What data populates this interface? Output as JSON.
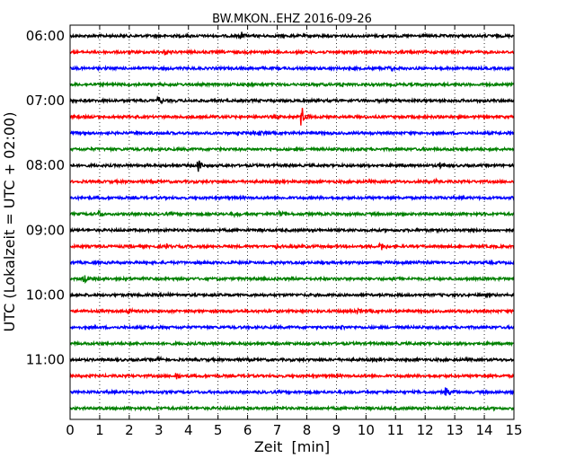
{
  "chart_data": {
    "type": "line",
    "title": "BW.MKON..EHZ 2016-09-26",
    "xlabel": "Zeit  [min]",
    "ylabel": "UTC (Lokalzeit = UTC + 02:00)",
    "xlim": [
      0,
      15
    ],
    "x_ticks": [
      "0",
      "1",
      "2",
      "3",
      "4",
      "5",
      "6",
      "7",
      "8",
      "9",
      "10",
      "11",
      "12",
      "13",
      "14",
      "15"
    ],
    "y_ticks": [
      "06:00",
      "07:00",
      "08:00",
      "09:00",
      "10:00",
      "11:00"
    ],
    "grid": "vertical dotted at each minute",
    "series_colors": [
      "#000000",
      "#ff0000",
      "#0000ff",
      "#008000"
    ],
    "traces": [
      {
        "start": "06:00",
        "color": "#000000",
        "events": [
          {
            "t": 5.8,
            "amp": 0.5
          }
        ]
      },
      {
        "start": "06:15",
        "color": "#ff0000",
        "events": [
          {
            "t": 3.2,
            "amp": 0.4
          }
        ]
      },
      {
        "start": "06:30",
        "color": "#0000ff",
        "events": [
          {
            "t": 10.8,
            "amp": 0.4
          }
        ]
      },
      {
        "start": "06:45",
        "color": "#008000",
        "events": [
          {
            "t": 9.2,
            "amp": 0.4
          }
        ]
      },
      {
        "start": "07:00",
        "color": "#000000",
        "events": [
          {
            "t": 3.0,
            "amp": 0.6
          }
        ]
      },
      {
        "start": "07:15",
        "color": "#ff0000",
        "events": [
          {
            "t": 7.85,
            "amp": 1.4
          }
        ]
      },
      {
        "start": "07:30",
        "color": "#0000ff",
        "events": [
          {
            "t": 5.7,
            "amp": 0.4
          },
          {
            "t": 6.4,
            "amp": 0.3
          }
        ]
      },
      {
        "start": "07:45",
        "color": "#008000",
        "events": []
      },
      {
        "start": "08:00",
        "color": "#000000",
        "events": [
          {
            "t": 4.35,
            "amp": 1.0
          },
          {
            "t": 12.5,
            "amp": 0.5
          }
        ]
      },
      {
        "start": "08:15",
        "color": "#ff0000",
        "events": [
          {
            "t": 12.3,
            "amp": 0.4
          }
        ]
      },
      {
        "start": "08:30",
        "color": "#0000ff",
        "events": []
      },
      {
        "start": "08:45",
        "color": "#008000",
        "events": [
          {
            "t": 1.0,
            "amp": 0.5
          },
          {
            "t": 7.1,
            "amp": 0.5
          },
          {
            "t": 5.6,
            "amp": 0.3
          }
        ]
      },
      {
        "start": "09:00",
        "color": "#000000",
        "events": []
      },
      {
        "start": "09:15",
        "color": "#ff0000",
        "events": [
          {
            "t": 3.2,
            "amp": 0.4
          },
          {
            "t": 7.0,
            "amp": 0.4
          },
          {
            "t": 10.5,
            "amp": 0.9
          }
        ]
      },
      {
        "start": "09:30",
        "color": "#0000ff",
        "events": [
          {
            "t": 11.7,
            "amp": 0.4
          }
        ]
      },
      {
        "start": "09:45",
        "color": "#008000",
        "events": [
          {
            "t": 0.5,
            "amp": 0.5
          },
          {
            "t": 10.8,
            "amp": 0.5
          }
        ]
      },
      {
        "start": "10:00",
        "color": "#000000",
        "events": [
          {
            "t": 3.2,
            "amp": 0.4
          }
        ]
      },
      {
        "start": "10:15",
        "color": "#ff0000",
        "events": [
          {
            "t": 2.0,
            "amp": 0.6
          },
          {
            "t": 9.7,
            "amp": 0.3
          }
        ]
      },
      {
        "start": "10:30",
        "color": "#0000ff",
        "events": [
          {
            "t": 9.2,
            "amp": 0.3
          }
        ]
      },
      {
        "start": "10:45",
        "color": "#008000",
        "events": []
      },
      {
        "start": "11:00",
        "color": "#000000",
        "events": [
          {
            "t": 3.0,
            "amp": 0.4
          }
        ]
      },
      {
        "start": "11:15",
        "color": "#ff0000",
        "events": [
          {
            "t": 3.6,
            "amp": 0.7
          }
        ]
      },
      {
        "start": "11:30",
        "color": "#0000ff",
        "events": [
          {
            "t": 12.7,
            "amp": 0.8
          },
          {
            "t": 13.0,
            "amp": 0.6
          }
        ]
      },
      {
        "start": "11:45",
        "color": "#008000",
        "events": []
      }
    ]
  }
}
